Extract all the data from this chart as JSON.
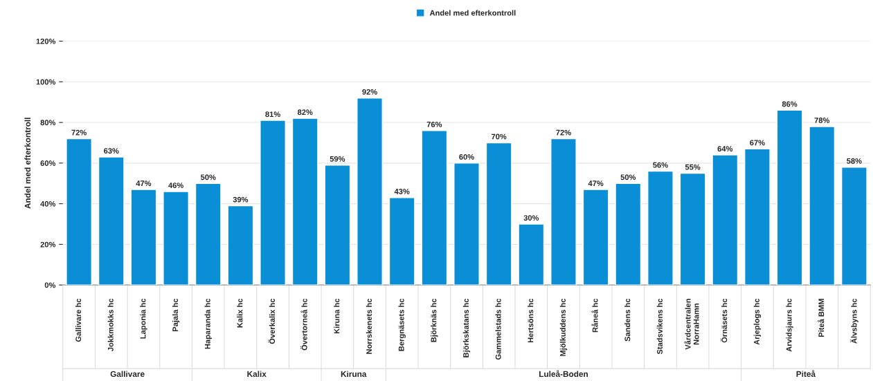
{
  "chart_data": {
    "type": "bar",
    "ylabel": "Andel med efterkontroll",
    "categories": [
      "Gallivare hc",
      "Jokkmokks hc",
      "Laponia hc",
      "Pajala hc",
      "Haparanda hc",
      "Kalix hc",
      "Överkalix hc",
      "Övertorneå hc",
      "Kiruna hc",
      "Norrskenets hc",
      "Bergnäsets hc",
      "Björknäs hc",
      "Björkskatans hc",
      "Gammelstads hc",
      "Hertsöns hc",
      "Mjölkuddens hc",
      "Råneå hc",
      "Sandens hc",
      "Stadsvikens hc",
      "Vårdcentralen\nNorraHamn",
      "Örnäsets hc",
      "Arjeplogs hc",
      "Arvidsjaurs hc",
      "Piteå BMM",
      "Älvsbyns hc"
    ],
    "series": [
      {
        "name": "Andel med efterkontroll",
        "color": "#0a8fd6",
        "values": [
          72,
          63,
          47,
          46,
          50,
          39,
          81,
          82,
          59,
          92,
          43,
          76,
          60,
          70,
          30,
          72,
          47,
          50,
          56,
          55,
          64,
          67,
          86,
          78,
          58
        ],
        "value_labels": [
          "72%",
          "63%",
          "47%",
          "46%",
          "50%",
          "39%",
          "81%",
          "82%",
          "59%",
          "92%",
          "43%",
          "76%",
          "60%",
          "70%",
          "30%",
          "72%",
          "47%",
          "50%",
          "56%",
          "55%",
          "64%",
          "67%",
          "86%",
          "78%",
          "58%"
        ]
      }
    ],
    "ylim": [
      0,
      120
    ],
    "yticks": [
      {
        "value": 0,
        "label": "0%"
      },
      {
        "value": 20,
        "label": "20%"
      },
      {
        "value": 40,
        "label": "40%"
      },
      {
        "value": 60,
        "label": "60%"
      },
      {
        "value": 80,
        "label": "80%"
      },
      {
        "value": 100,
        "label": "100%"
      },
      {
        "value": 120,
        "label": "120%"
      }
    ],
    "grid": "y",
    "legend": "top",
    "annotations": [
      "Gallivare",
      "Kalix",
      "Kiruna",
      "Luleå-Boden",
      "Piteå"
    ]
  }
}
